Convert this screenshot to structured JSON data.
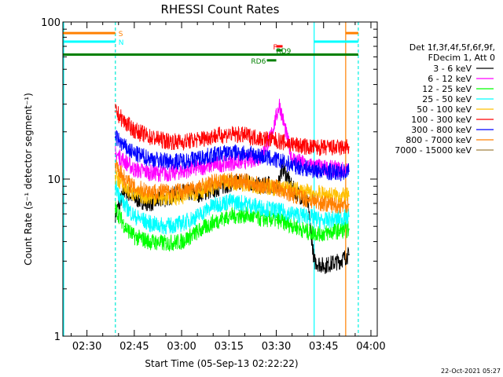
{
  "chart_data": {
    "type": "line",
    "title": "RHESSI Count Rates",
    "xlabel": "Start Time (05-Sep-13 02:22:22)",
    "ylabel": "Count Rate (s⁻¹ detector segment⁻¹)",
    "y_scale": "log",
    "ylim": [
      1,
      100
    ],
    "xlim": [
      "02:22:22",
      "04:02:00"
    ],
    "x_ticks": [
      "02:30",
      "02:45",
      "03:00",
      "03:15",
      "03:30",
      "03:45",
      "04:00"
    ],
    "y_ticks": [
      "1",
      "10",
      "100"
    ],
    "grid": false,
    "legend_position": "right",
    "legend_header": [
      "Det 1f,3f,4f,5f,6f,9f,",
      "FDecim 1, Att 0"
    ],
    "timestamp": "22-Oct-2021 05:27",
    "series": [
      {
        "name": "3 - 6 keV",
        "color": "#000000",
        "x": [
          "02:39",
          "02:42",
          "02:45",
          "02:50",
          "02:55",
          "03:00",
          "03:05",
          "03:10",
          "03:15",
          "03:20",
          "03:25",
          "03:28",
          "03:30",
          "03:32",
          "03:35",
          "03:40",
          "03:42",
          "03:45",
          "03:50",
          "03:53"
        ],
        "values": [
          6,
          8.5,
          7.5,
          7.0,
          7.5,
          8.3,
          8.0,
          8.5,
          9.3,
          9.8,
          9.0,
          9.3,
          8.5,
          12.0,
          8.8,
          7.0,
          3.0,
          2.8,
          3.0,
          3.3
        ]
      },
      {
        "name": "6 - 12 keV",
        "color": "#ff00ff",
        "x": [
          "02:39",
          "02:42",
          "02:45",
          "02:50",
          "02:55",
          "03:00",
          "03:05",
          "03:10",
          "03:15",
          "03:20",
          "03:25",
          "03:28",
          "03:30",
          "03:31",
          "03:33",
          "03:35",
          "03:40",
          "03:45",
          "03:50",
          "03:53"
        ],
        "values": [
          14.5,
          13.0,
          11.5,
          11.0,
          10.8,
          11.2,
          11.8,
          12.3,
          12.7,
          13.0,
          13.8,
          18.0,
          25.0,
          30.0,
          20.0,
          13.5,
          12.2,
          11.8,
          11.5,
          11.3
        ]
      },
      {
        "name": "12 - 25 keV",
        "color": "#00ff00",
        "x": [
          "02:39",
          "02:42",
          "02:45",
          "02:50",
          "02:55",
          "03:00",
          "03:05",
          "03:10",
          "03:15",
          "03:20",
          "03:25",
          "03:30",
          "03:35",
          "03:40",
          "03:45",
          "03:50",
          "03:53"
        ],
        "values": [
          6.5,
          5.0,
          4.3,
          4.0,
          3.9,
          4.0,
          4.6,
          5.3,
          5.8,
          5.9,
          5.6,
          5.5,
          5.1,
          4.6,
          4.5,
          4.7,
          4.8
        ]
      },
      {
        "name": "25 - 50 keV",
        "color": "#00ffff",
        "x": [
          "02:39",
          "02:42",
          "02:45",
          "02:50",
          "02:55",
          "03:00",
          "03:05",
          "03:10",
          "03:15",
          "03:20",
          "03:25",
          "03:30",
          "03:35",
          "03:40",
          "03:45",
          "03:50",
          "03:53"
        ],
        "values": [
          9.0,
          6.8,
          5.8,
          5.2,
          5.0,
          5.2,
          5.8,
          6.8,
          7.2,
          7.0,
          6.6,
          6.3,
          6.0,
          5.8,
          5.4,
          5.6,
          5.8
        ]
      },
      {
        "name": "50 - 100 keV",
        "color": "#ffc000",
        "x": [
          "02:39",
          "02:42",
          "02:45",
          "02:50",
          "02:55",
          "03:00",
          "03:05",
          "03:10",
          "03:15",
          "03:20",
          "03:25",
          "03:30",
          "03:35",
          "03:40",
          "03:45",
          "03:50",
          "03:53"
        ],
        "values": [
          10.5,
          8.8,
          8.0,
          7.7,
          7.6,
          7.8,
          8.3,
          9.0,
          9.6,
          9.4,
          9.0,
          8.8,
          8.6,
          8.2,
          8.0,
          7.8,
          7.8
        ]
      },
      {
        "name": "100 - 300 keV",
        "color": "#ff0000",
        "x": [
          "02:39",
          "02:42",
          "02:45",
          "02:50",
          "02:55",
          "03:00",
          "03:05",
          "03:10",
          "03:15",
          "03:20",
          "03:25",
          "03:30",
          "03:35",
          "03:40",
          "03:45",
          "03:50",
          "03:53"
        ],
        "values": [
          27,
          23,
          20.5,
          18.5,
          17.5,
          17.2,
          17.8,
          18.8,
          19.3,
          19.0,
          18.2,
          17.6,
          16.6,
          16.0,
          15.8,
          15.8,
          16.0
        ]
      },
      {
        "name": "300 - 800 keV",
        "color": "#0000ff",
        "x": [
          "02:39",
          "02:42",
          "02:45",
          "02:50",
          "02:55",
          "03:00",
          "03:05",
          "03:10",
          "03:15",
          "03:20",
          "03:25",
          "03:30",
          "03:35",
          "03:40",
          "03:45",
          "03:50",
          "03:53"
        ],
        "values": [
          18.5,
          16.0,
          14.5,
          13.5,
          13.0,
          13.0,
          13.5,
          14.2,
          14.8,
          14.6,
          14.0,
          13.2,
          12.3,
          11.6,
          11.2,
          11.0,
          11.2
        ]
      },
      {
        "name": "800 - 7000 keV",
        "color": "#ff8000",
        "x": [
          "02:39",
          "02:42",
          "02:45",
          "02:50",
          "02:55",
          "03:00",
          "03:05",
          "03:10",
          "03:15",
          "03:20",
          "03:25",
          "03:30",
          "03:35",
          "03:40",
          "03:45",
          "03:50",
          "03:53"
        ],
        "values": [
          12.5,
          10.0,
          8.8,
          8.4,
          8.3,
          8.4,
          8.8,
          9.5,
          9.8,
          9.6,
          9.1,
          8.8,
          8.0,
          7.4,
          7.0,
          6.8,
          6.9
        ]
      },
      {
        "name": "7000 - 15000 keV",
        "color": "#a08040",
        "x": [],
        "values": []
      }
    ],
    "state_bars": [
      {
        "label": "S",
        "color": "#ff8000",
        "level": 85,
        "segments": [
          [
            "02:22:22",
            "02:39"
          ],
          [
            "03:52",
            "03:56"
          ]
        ],
        "label_at": "02:39"
      },
      {
        "label": "N",
        "color": "#00ffff",
        "level": 75,
        "segments": [
          [
            "02:22:22",
            "02:39"
          ],
          [
            "03:42",
            "03:56"
          ]
        ],
        "label_at": "02:39"
      },
      {
        "label": "",
        "color": "#008000",
        "level": 62,
        "segments": [
          [
            "02:22:22",
            "03:56"
          ]
        ]
      },
      {
        "label": "F",
        "color": "#ff0000",
        "level": 70,
        "segments": [
          [
            "03:30",
            "03:32"
          ]
        ],
        "label_at": "03:28"
      },
      {
        "label": "RD9",
        "color": "#008000",
        "level": 66,
        "segments": [
          [
            "03:30",
            "03:32"
          ]
        ],
        "label_at": "03:29"
      },
      {
        "label": "RD6",
        "color": "#008000",
        "level": 57,
        "segments": [
          [
            "03:27",
            "03:30"
          ]
        ],
        "label_at": "03:21"
      }
    ],
    "vertical_markers": [
      {
        "x": "02:22:22",
        "color": "#00ffff",
        "style": "solid"
      },
      {
        "x": "02:39",
        "color": "#ff8000",
        "style": "dashed"
      },
      {
        "x": "02:39",
        "color": "#00ffff",
        "style": "dashed"
      },
      {
        "x": "03:42",
        "color": "#00ffff",
        "style": "solid"
      },
      {
        "x": "03:52",
        "color": "#ff8000",
        "style": "solid"
      },
      {
        "x": "03:56",
        "color": "#ff8000",
        "style": "dashed"
      },
      {
        "x": "03:56",
        "color": "#00ffff",
        "style": "dashed"
      }
    ]
  }
}
